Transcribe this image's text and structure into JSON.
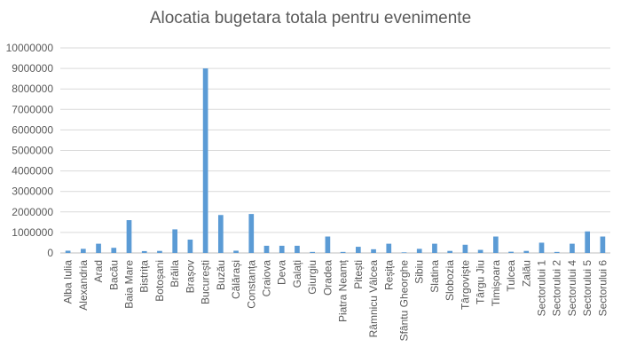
{
  "chart_data": {
    "type": "bar",
    "title": "Alocatia bugetara totala pentru evenimente",
    "xlabel": "",
    "ylabel": "",
    "ylim": [
      0,
      10000000
    ],
    "yticks": [
      0,
      1000000,
      2000000,
      3000000,
      4000000,
      5000000,
      6000000,
      7000000,
      8000000,
      9000000,
      10000000
    ],
    "grid": true,
    "legend": "none",
    "bar_color": "#5B9BD5",
    "categories": [
      "Alba Iulia",
      "Alexandria",
      "Arad",
      "Bacău",
      "Baia Mare",
      "Bistrița",
      "Botoșani",
      "Brăila",
      "Brașov",
      "București",
      "Buzău",
      "Călărași",
      "Constanța",
      "Craiova",
      "Deva",
      "Galați",
      "Giurgiu",
      "Oradea",
      "Piatra Neamț",
      "Pitești",
      "Râmnicu Vâlcea",
      "Reșița",
      "Sfântu Gheorghe",
      "Sibiu",
      "Slatina",
      "Slobozia",
      "Târgoviște",
      "Târgu Jiu",
      "Timișoara",
      "Tulcea",
      "Zalău",
      "Sectorului 1",
      "Sectorului 2",
      "Sectorului 4",
      "Sectorului 5",
      "Sectorului 6"
    ],
    "values": [
      110000,
      200000,
      450000,
      250000,
      1600000,
      90000,
      100000,
      1150000,
      650000,
      9000000,
      1850000,
      110000,
      1900000,
      350000,
      350000,
      350000,
      50000,
      800000,
      50000,
      300000,
      180000,
      450000,
      30000,
      200000,
      450000,
      100000,
      400000,
      150000,
      800000,
      60000,
      100000,
      500000,
      50000,
      450000,
      1050000,
      800000
    ]
  }
}
